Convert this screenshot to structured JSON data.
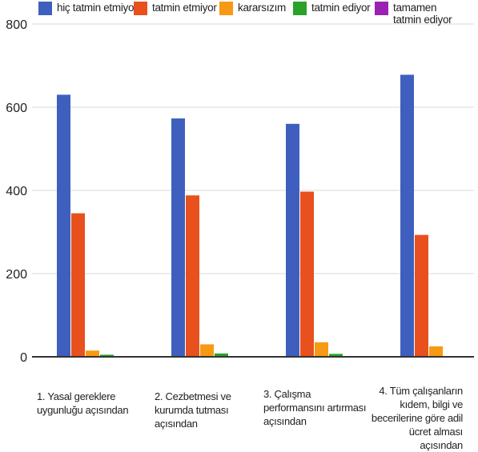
{
  "chart_data": {
    "type": "bar",
    "title": "",
    "xlabel": "",
    "ylabel": "",
    "ylim": [
      0,
      800
    ],
    "yticks": [
      "0",
      "200",
      "400",
      "600",
      "800"
    ],
    "grid": true,
    "legend_position": "top",
    "categories": [
      "1. Yasal gereklere uygunluğu açısından",
      "2. Cezbetmesi ve kurumda tutması açısından",
      "3. Çalışma performansını artırması açısından",
      "4. Tüm çalışanların kıdem, bilgi ve becerilerine göre adil ücret alması açısından"
    ],
    "series": [
      {
        "name": "hiç tatmin etmiyor",
        "color": "#3f5fbf",
        "values": [
          630,
          573,
          560,
          678
        ]
      },
      {
        "name": "tatmin etmiyor",
        "color": "#e8501d",
        "values": [
          345,
          388,
          397,
          293
        ]
      },
      {
        "name": "kararsızım",
        "color": "#f79a13",
        "values": [
          15,
          30,
          35,
          25
        ]
      },
      {
        "name": "tatmin ediyor",
        "color": "#2aa22a",
        "values": [
          5,
          8,
          7,
          0
        ]
      },
      {
        "name": "tamamen tatmin ediyor",
        "color": "#9a22b0",
        "values": [
          0,
          0,
          0,
          0
        ]
      }
    ]
  }
}
